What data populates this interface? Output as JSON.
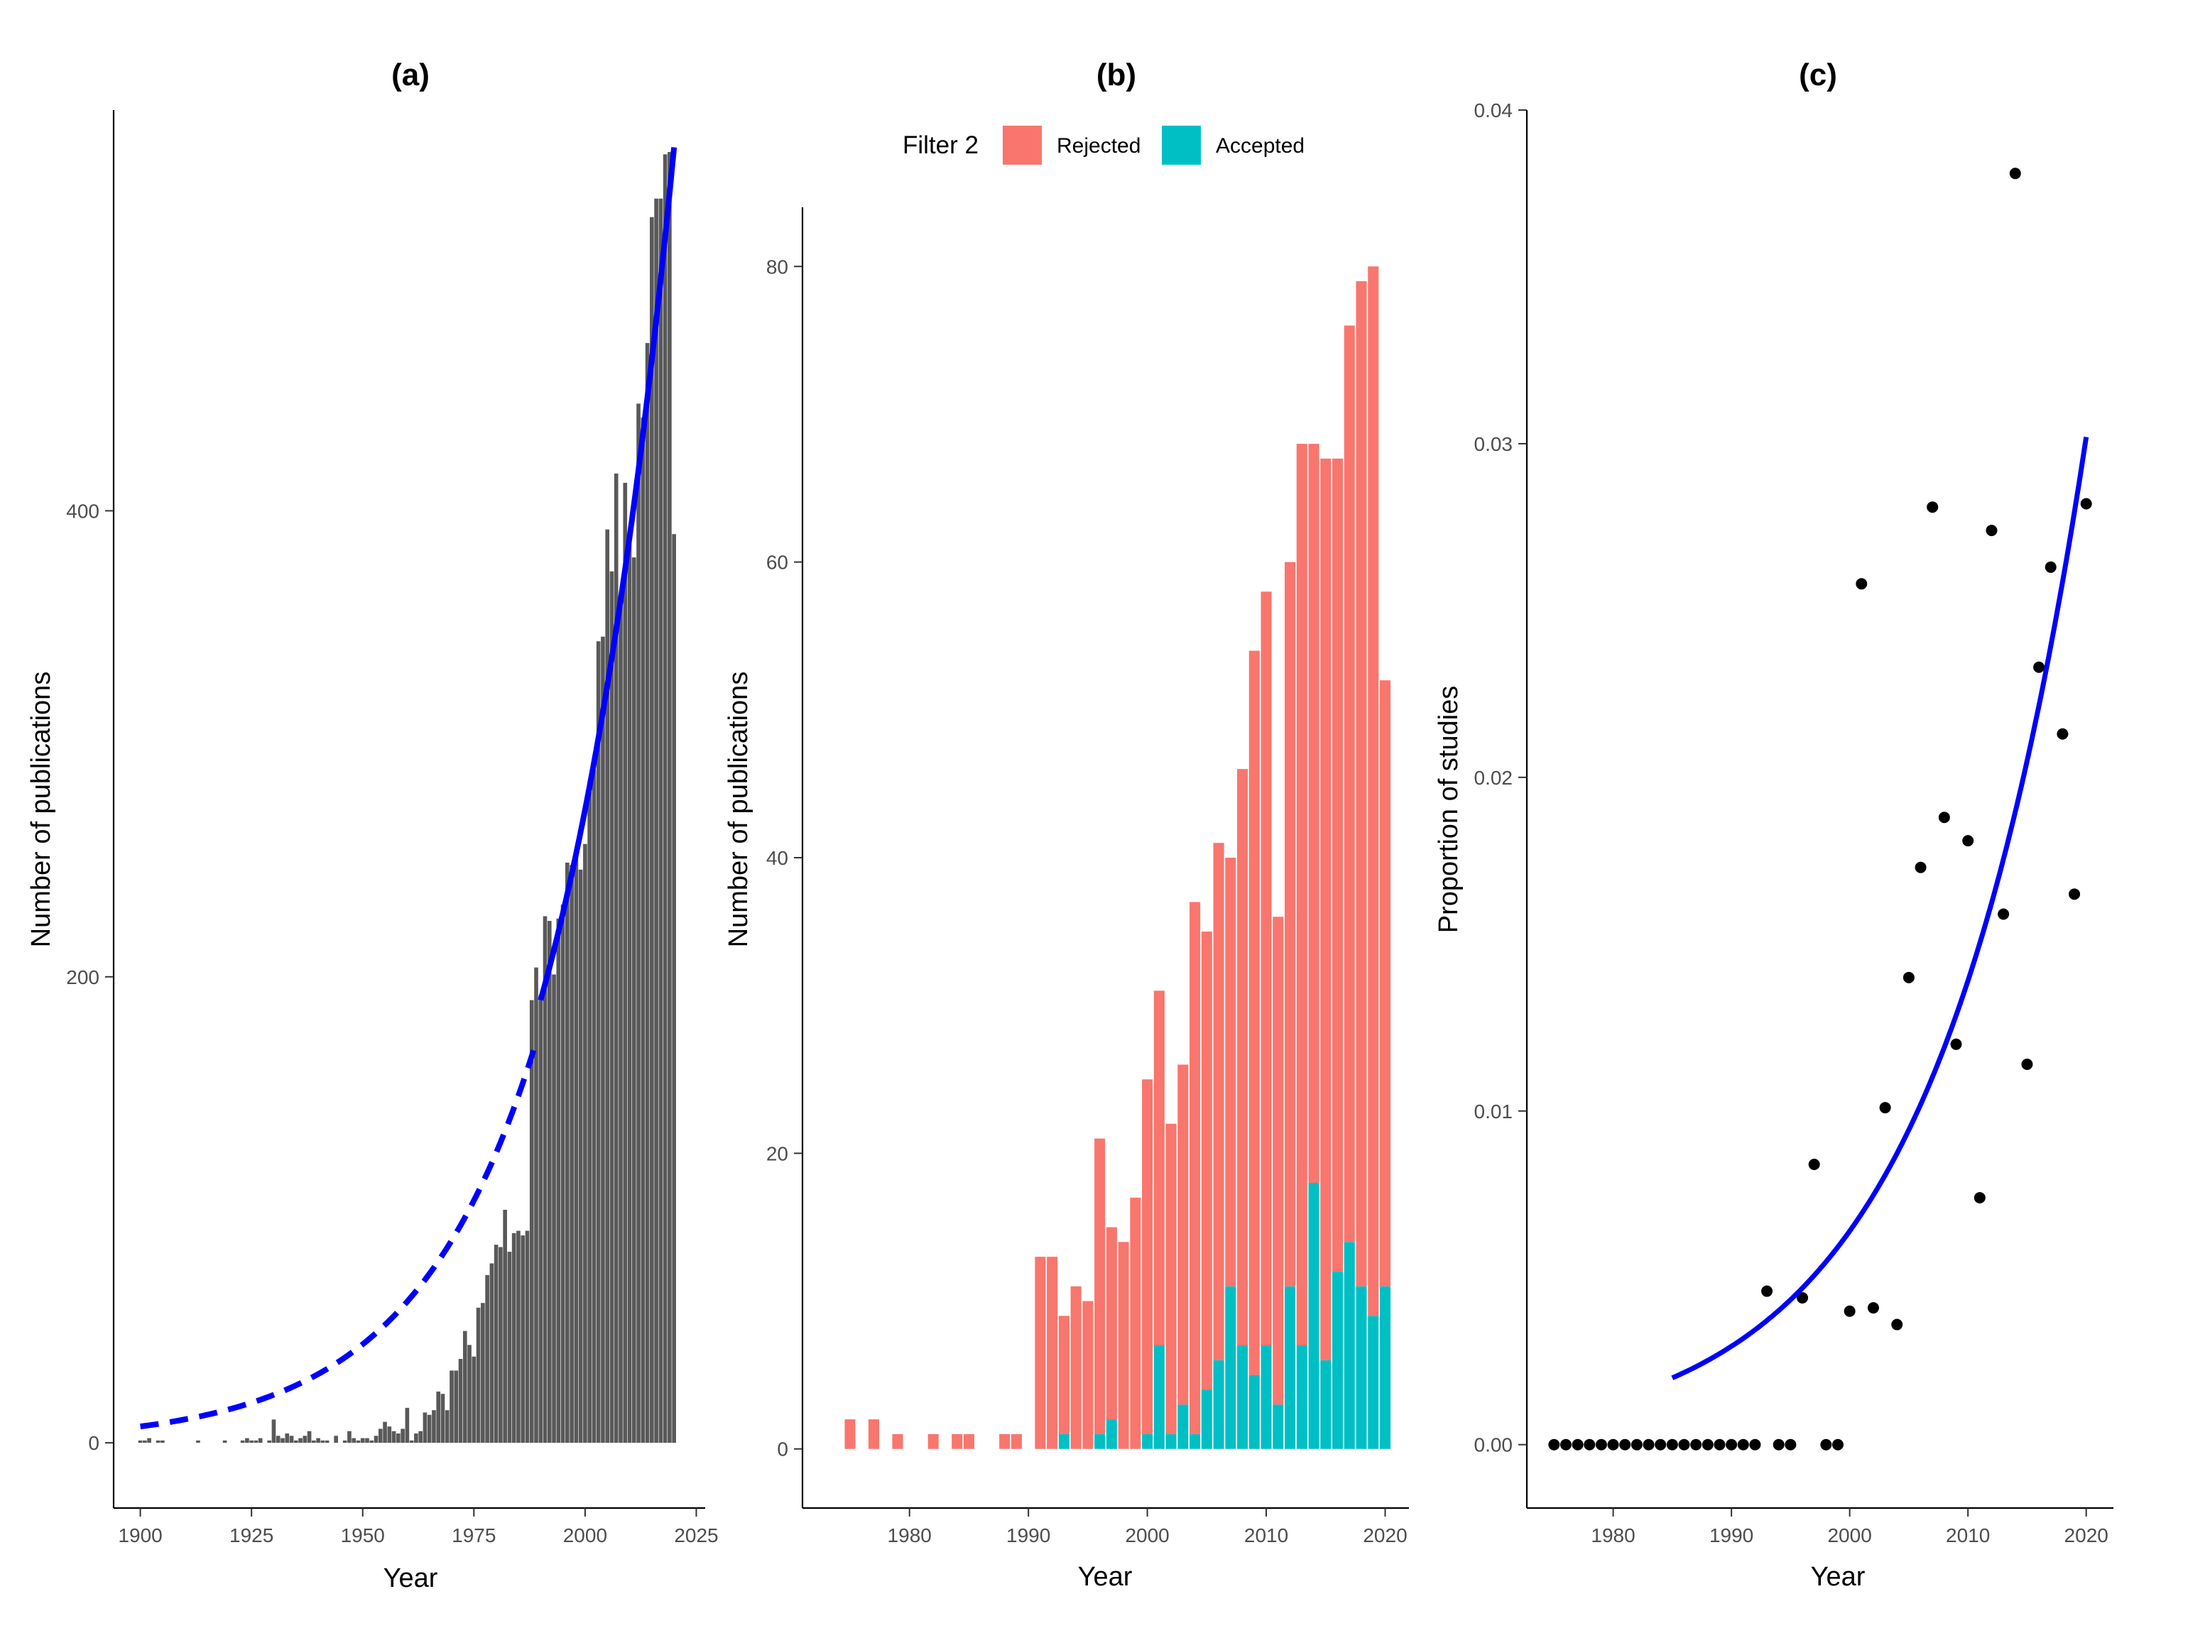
{
  "chart_data": [
    {
      "panel": "(a)",
      "type": "bar",
      "title": "(a)",
      "xlabel": "Year",
      "ylabel": "Number of publications",
      "xlim": [
        1894,
        2027
      ],
      "ylim": [
        -28,
        572
      ],
      "xticks": [
        "1900",
        "1925",
        "1950",
        "1975",
        "2000",
        "2025"
      ],
      "yticks": [
        "0",
        "200",
        "400"
      ],
      "bar_color": "#595959",
      "curve_color": "#0000ff",
      "x": [
        1900,
        1901,
        1902,
        1904,
        1905,
        1913,
        1919,
        1923,
        1924,
        1925,
        1926,
        1927,
        1929,
        1930,
        1931,
        1932,
        1933,
        1934,
        1935,
        1936,
        1937,
        1938,
        1939,
        1940,
        1941,
        1942,
        1944,
        1946,
        1947,
        1948,
        1949,
        1950,
        1951,
        1952,
        1953,
        1954,
        1955,
        1956,
        1957,
        1958,
        1959,
        1960,
        1961,
        1962,
        1963,
        1964,
        1965,
        1966,
        1967,
        1968,
        1969,
        1970,
        1971,
        1972,
        1973,
        1974,
        1975,
        1976,
        1977,
        1978,
        1979,
        1980,
        1981,
        1982,
        1983,
        1984,
        1985,
        1986,
        1987,
        1988,
        1989,
        1990,
        1991,
        1992,
        1993,
        1994,
        1995,
        1996,
        1997,
        1998,
        1999,
        2000,
        2001,
        2002,
        2003,
        2004,
        2005,
        2006,
        2007,
        2008,
        2009,
        2010,
        2011,
        2012,
        2013,
        2014,
        2015,
        2016,
        2017,
        2018,
        2019,
        2020
      ],
      "values": [
        1,
        1,
        2,
        1,
        1,
        1,
        1,
        1,
        2,
        1,
        1,
        2,
        1,
        10,
        3,
        2,
        4,
        3,
        1,
        2,
        3,
        5,
        1,
        2,
        1,
        1,
        3,
        1,
        5,
        2,
        1,
        2,
        2,
        1,
        3,
        6,
        9,
        7,
        5,
        4,
        6,
        15,
        1,
        4,
        5,
        13,
        12,
        14,
        22,
        21,
        14,
        31,
        31,
        36,
        48,
        42,
        37,
        58,
        60,
        72,
        77,
        85,
        84,
        100,
        82,
        90,
        91,
        89,
        91,
        190,
        204,
        192,
        226,
        224,
        201,
        225,
        231,
        249,
        248,
        251,
        246,
        257,
        284,
        289,
        344,
        346,
        392,
        374,
        416,
        360,
        412,
        391,
        380,
        446,
        440,
        472,
        526,
        534,
        534,
        553,
        554,
        390
      ],
      "fit_dashed": {
        "from": 1900,
        "to": 1989
      },
      "fit_solid": {
        "from": 1990,
        "to": 2020
      }
    },
    {
      "panel": "(b)",
      "type": "bar",
      "stacked": true,
      "title": "(b)",
      "xlabel": "Year",
      "ylabel": "Number of publications",
      "xlim": [
        1971,
        2022
      ],
      "ylim": [
        -4,
        84
      ],
      "xticks": [
        "1980",
        "1990",
        "2000",
        "2010",
        "2020"
      ],
      "yticks": [
        "0",
        "20",
        "40",
        "60",
        "80"
      ],
      "legend": {
        "title": "Filter 2",
        "position": "top"
      },
      "x": [
        1975,
        1977,
        1979,
        1982,
        1984,
        1985,
        1988,
        1989,
        1991,
        1992,
        1993,
        1994,
        1995,
        1996,
        1997,
        1998,
        1999,
        2000,
        2001,
        2002,
        2003,
        2004,
        2005,
        2006,
        2007,
        2008,
        2009,
        2010,
        2011,
        2012,
        2013,
        2014,
        2015,
        2016,
        2017,
        2018,
        2019,
        2020
      ],
      "series": [
        {
          "name": "Accepted",
          "color": "#00bfc4",
          "values": [
            0,
            0,
            0,
            0,
            0,
            0,
            0,
            0,
            0,
            0,
            1,
            0,
            0,
            1,
            2,
            0,
            0,
            1,
            7,
            1,
            3,
            1,
            4,
            6,
            11,
            7,
            5,
            7,
            3,
            11,
            7,
            18,
            6,
            12,
            14,
            11,
            9,
            11
          ]
        },
        {
          "name": "Rejected",
          "color": "#f8766d",
          "values": [
            2,
            2,
            1,
            1,
            1,
            1,
            1,
            1,
            13,
            13,
            8,
            11,
            10,
            20,
            13,
            14,
            17,
            24,
            24,
            21,
            23,
            36,
            31,
            35,
            29,
            39,
            49,
            51,
            33,
            49,
            61,
            50,
            61,
            55,
            62,
            68,
            71,
            41
          ]
        }
      ]
    },
    {
      "panel": "(c)",
      "type": "scatter",
      "title": "(c)",
      "xlabel": "Year",
      "ylabel": "Proportion of studies",
      "xlim": [
        1972.7,
        2022.3
      ],
      "ylim": [
        -0.0019,
        0.04
      ],
      "xticks": [
        "1980",
        "1990",
        "2000",
        "2010",
        "2020"
      ],
      "yticks": [
        "0.00",
        "0.01",
        "0.02",
        "0.03",
        "0.04"
      ],
      "point_color": "#000000",
      "curve_color": "#0000ff",
      "points": [
        [
          1975,
          0
        ],
        [
          1976,
          0
        ],
        [
          1977,
          0
        ],
        [
          1978,
          0
        ],
        [
          1979,
          0
        ],
        [
          1980,
          0
        ],
        [
          1981,
          0
        ],
        [
          1982,
          0
        ],
        [
          1983,
          0
        ],
        [
          1984,
          0
        ],
        [
          1985,
          0
        ],
        [
          1986,
          0
        ],
        [
          1987,
          0
        ],
        [
          1988,
          0
        ],
        [
          1989,
          0
        ],
        [
          1990,
          0
        ],
        [
          1991,
          0
        ],
        [
          1992,
          0
        ],
        [
          1993,
          0.0046
        ],
        [
          1994,
          0
        ],
        [
          1995,
          0
        ],
        [
          1996,
          0.0044
        ],
        [
          1997,
          0.0084
        ],
        [
          1998,
          0
        ],
        [
          1999,
          0
        ],
        [
          2000,
          0.004
        ],
        [
          2001,
          0.0258
        ],
        [
          2002,
          0.0041
        ],
        [
          2003,
          0.0101
        ],
        [
          2004,
          0.0036
        ],
        [
          2005,
          0.014
        ],
        [
          2006,
          0.0173
        ],
        [
          2007,
          0.0281
        ],
        [
          2008,
          0.0188
        ],
        [
          2009,
          0.012
        ],
        [
          2010,
          0.0181
        ],
        [
          2011,
          0.0074
        ],
        [
          2012,
          0.0274
        ],
        [
          2013,
          0.0159
        ],
        [
          2014,
          0.0381
        ],
        [
          2015,
          0.0114
        ],
        [
          2016,
          0.0233
        ],
        [
          2017,
          0.0263
        ],
        [
          2018,
          0.0213
        ],
        [
          2019,
          0.0165
        ],
        [
          2020,
          0.0282
        ]
      ],
      "fit": {
        "from": 1985,
        "to": 2020
      }
    }
  ]
}
